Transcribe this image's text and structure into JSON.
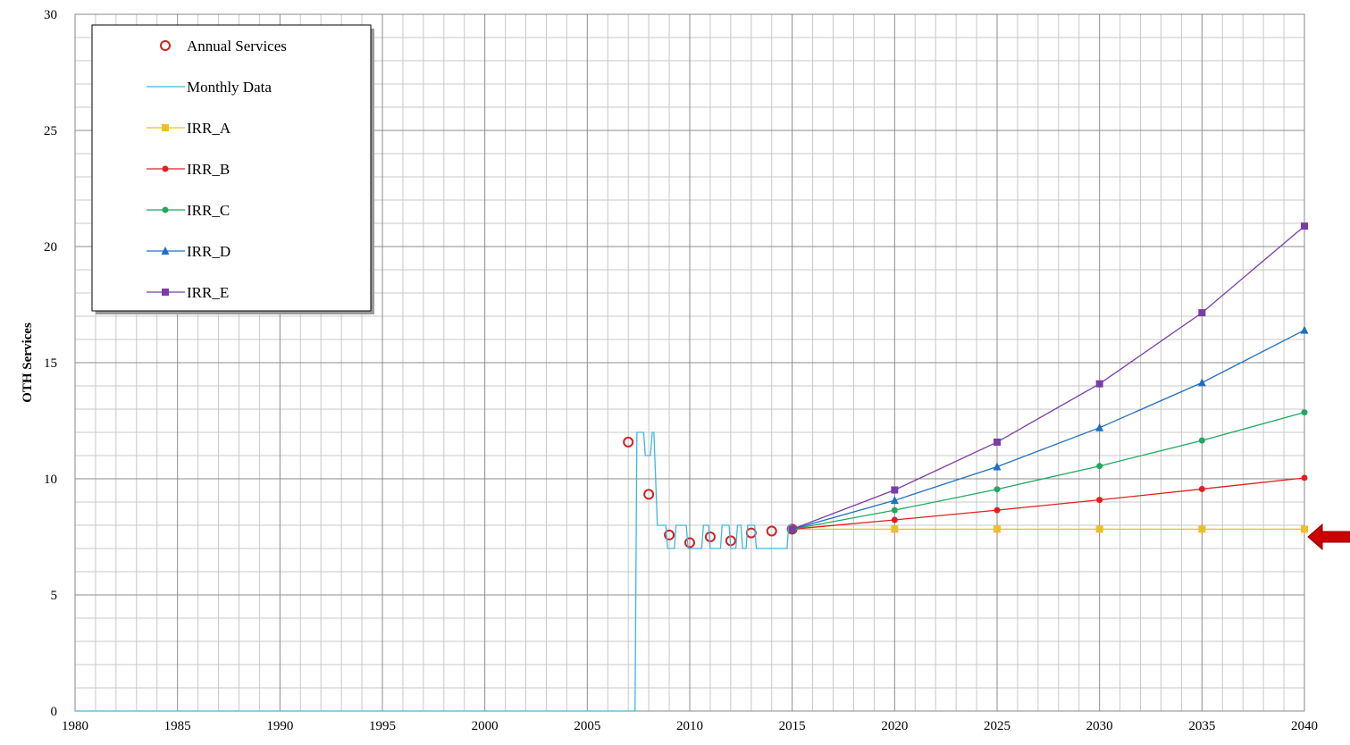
{
  "chart_data": {
    "type": "line",
    "xlabel": "",
    "ylabel": "OTH Services",
    "xlim": [
      1980,
      2040
    ],
    "ylim": [
      0,
      30
    ],
    "x_ticks": [
      1980,
      1985,
      1990,
      1995,
      2000,
      2005,
      2010,
      2015,
      2020,
      2025,
      2030,
      2035,
      2040
    ],
    "y_ticks": [
      0,
      5,
      10,
      15,
      20,
      25,
      30
    ],
    "grid": true,
    "legend_position": "top-left",
    "series": [
      {
        "name": "Annual Services",
        "style": "open-circle-markers",
        "color": "#d42020",
        "x": [
          2007,
          2008,
          2009,
          2010,
          2011,
          2012,
          2013,
          2014,
          2015
        ],
        "y": [
          11.58,
          9.33,
          7.58,
          7.25,
          7.5,
          7.33,
          7.67,
          7.75,
          7.83
        ]
      },
      {
        "name": "Monthly Data",
        "style": "step-line",
        "color": "#3cb8e0",
        "x": [
          1980,
          2007.33,
          2007.42,
          2007.75,
          2007.83,
          2008.08,
          2008.17,
          2008.25,
          2008.42,
          2008.83,
          2008.92,
          2009.25,
          2009.33,
          2009.83,
          2009.92,
          2010.58,
          2010.67,
          2010.92,
          2011.0,
          2011.5,
          2011.58,
          2011.92,
          2012.0,
          2012.25,
          2012.33,
          2012.5,
          2012.58,
          2012.75,
          2012.83,
          2013.17,
          2013.25,
          2014.75,
          2014.83,
          2015.0
        ],
        "y": [
          0,
          0,
          12,
          12,
          11,
          11,
          12,
          12,
          8,
          8,
          7,
          7,
          8,
          8,
          7,
          7,
          8,
          8,
          7,
          7,
          8,
          8,
          7,
          7,
          8,
          8,
          7,
          7,
          8,
          8,
          7,
          7,
          8,
          8
        ]
      },
      {
        "name": "IRR_A",
        "style": "line-square-markers",
        "color": "#f0c020",
        "x": [
          2015,
          2020,
          2025,
          2030,
          2035,
          2040
        ],
        "y": [
          7.83,
          7.83,
          7.83,
          7.83,
          7.83,
          7.83
        ]
      },
      {
        "name": "IRR_B",
        "style": "line-dot-markers",
        "color": "#e02020",
        "x": [
          2015,
          2020,
          2025,
          2030,
          2035,
          2040
        ],
        "y": [
          7.83,
          8.23,
          8.65,
          9.09,
          9.56,
          10.04
        ]
      },
      {
        "name": "IRR_C",
        "style": "line-dot-markers",
        "color": "#20a860",
        "x": [
          2015,
          2020,
          2025,
          2030,
          2035,
          2040
        ],
        "y": [
          7.83,
          8.65,
          9.55,
          10.55,
          11.65,
          12.86
        ]
      },
      {
        "name": "IRR_D",
        "style": "line-triangle-markers",
        "color": "#2070c0",
        "x": [
          2015,
          2020,
          2025,
          2030,
          2035,
          2040
        ],
        "y": [
          7.83,
          9.07,
          10.52,
          12.2,
          14.14,
          16.4
        ]
      },
      {
        "name": "IRR_E",
        "style": "line-square-markers",
        "color": "#7a3da8",
        "x": [
          2015,
          2020,
          2025,
          2030,
          2035,
          2040
        ],
        "y": [
          7.83,
          9.52,
          11.58,
          14.09,
          17.15,
          20.88
        ]
      }
    ],
    "annotations": [
      {
        "type": "arrow",
        "direction": "left",
        "color": "#cc0000",
        "y": 7.5
      }
    ]
  }
}
